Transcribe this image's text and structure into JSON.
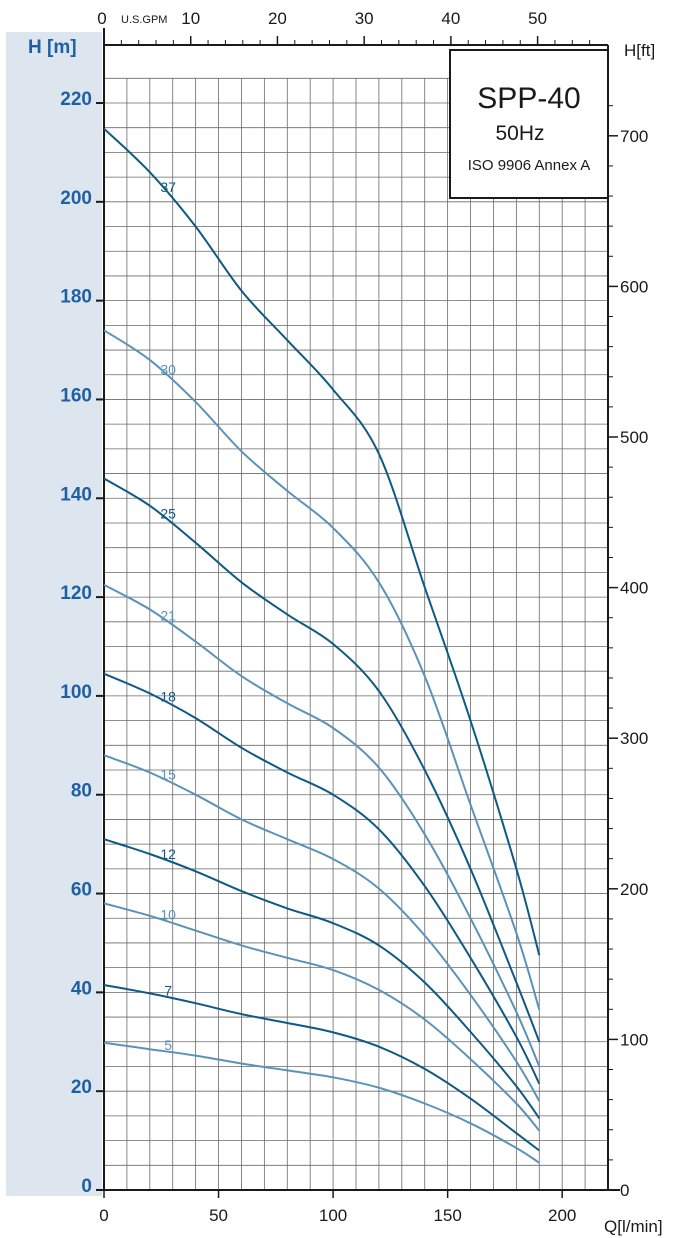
{
  "chart_data": {
    "type": "line",
    "model": "SPP-40",
    "frequency": "50Hz",
    "standard": "ISO 9906 Annex A",
    "y_axis_left": {
      "label": "H [m]",
      "ticks": [
        "0",
        "20",
        "40",
        "60",
        "80",
        "100",
        "120",
        "140",
        "160",
        "180",
        "200",
        "220"
      ],
      "range": [
        0,
        225
      ]
    },
    "y_axis_right": {
      "label": "H[ft]",
      "ticks": [
        "0",
        "100",
        "200",
        "300",
        "400",
        "500",
        "600",
        "700"
      ]
    },
    "x_axis_bottom": {
      "label": "Q[l/min]",
      "ticks": [
        "0",
        "50",
        "100",
        "150",
        "200"
      ],
      "range": [
        0,
        220
      ]
    },
    "x_axis_top": {
      "label": "U.S.GPM",
      "ticks": [
        "0",
        "10",
        "20",
        "30",
        "40",
        "50"
      ]
    },
    "colors": {
      "dark": "#0e5a84",
      "light": "#5b93b8",
      "panel": "#dde6ee",
      "grid": "#6a6a6a"
    },
    "x": [
      0,
      20,
      40,
      60,
      80,
      100,
      120,
      140,
      160,
      180,
      190
    ],
    "series": [
      {
        "label": "37",
        "color": "dark",
        "values": [
          214.8,
          206.0,
          195.0,
          182.0,
          172.0,
          162.0,
          149.0,
          122.0,
          95.0,
          65.0,
          47.5
        ]
      },
      {
        "label": "30",
        "color": "light",
        "values": [
          174.0,
          168.0,
          159.5,
          149.5,
          141.5,
          134.0,
          123.0,
          104.0,
          78.0,
          52.0,
          36.5
        ]
      },
      {
        "label": "25",
        "color": "dark",
        "values": [
          144.0,
          138.5,
          131.0,
          123.0,
          116.5,
          110.5,
          101.0,
          85.0,
          65.0,
          42.0,
          30.0
        ]
      },
      {
        "label": "21",
        "color": "light",
        "values": [
          122.5,
          117.5,
          111.0,
          104.0,
          98.5,
          93.5,
          85.5,
          72.0,
          55.0,
          36.0,
          25.0
        ]
      },
      {
        "label": "18",
        "color": "dark",
        "values": [
          104.5,
          100.5,
          95.5,
          89.5,
          84.5,
          80.0,
          73.0,
          61.5,
          47.0,
          31.0,
          21.5
        ]
      },
      {
        "label": "15",
        "color": "light",
        "values": [
          88.0,
          84.5,
          80.0,
          75.0,
          71.0,
          67.0,
          61.0,
          51.5,
          39.5,
          26.0,
          18.0
        ]
      },
      {
        "label": "12",
        "color": "dark",
        "values": [
          71.0,
          68.0,
          64.5,
          60.5,
          57.0,
          54.0,
          49.5,
          42.0,
          32.0,
          21.0,
          14.5
        ]
      },
      {
        "label": "10",
        "color": "light",
        "values": [
          58.0,
          55.5,
          52.5,
          49.5,
          47.0,
          44.5,
          40.5,
          34.5,
          26.5,
          17.5,
          12.0
        ]
      },
      {
        "label": "7",
        "color": "dark",
        "values": [
          41.5,
          39.8,
          37.8,
          35.6,
          33.8,
          31.9,
          29.0,
          24.5,
          18.5,
          11.5,
          8.0
        ]
      },
      {
        "label": "5",
        "color": "light",
        "values": [
          29.8,
          28.5,
          27.2,
          25.6,
          24.2,
          22.8,
          20.7,
          17.5,
          13.5,
          8.5,
          5.5
        ]
      }
    ]
  }
}
